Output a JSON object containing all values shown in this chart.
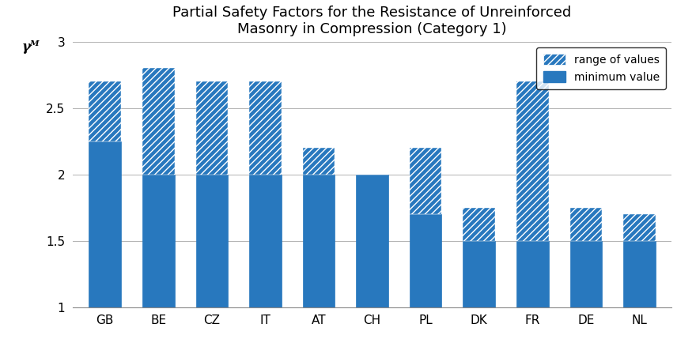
{
  "categories": [
    "GB",
    "BE",
    "CZ",
    "IT",
    "AT",
    "CH",
    "PL",
    "DK",
    "FR",
    "DE",
    "NL"
  ],
  "min_values": [
    2.25,
    2.0,
    2.0,
    2.0,
    2.0,
    2.0,
    1.7,
    1.5,
    1.5,
    1.5,
    1.5
  ],
  "max_values": [
    2.7,
    2.8,
    2.7,
    2.7,
    2.2,
    2.0,
    2.2,
    1.75,
    2.7,
    1.75,
    1.7
  ],
  "bar_color": "#2878be",
  "title_line1": "Partial Safety Factors for the Resistance of Unreinforced",
  "title_line2": "Masonry in Compression (Category 1)",
  "ylabel": "γᴹ",
  "ylim_min": 1.0,
  "ylim_max": 3.0,
  "yticks": [
    1.0,
    1.5,
    2.0,
    2.5,
    3.0
  ],
  "legend_label_hatch": "range of values",
  "legend_label_solid": "minimum value",
  "title_fontsize": 13,
  "tick_fontsize": 11
}
